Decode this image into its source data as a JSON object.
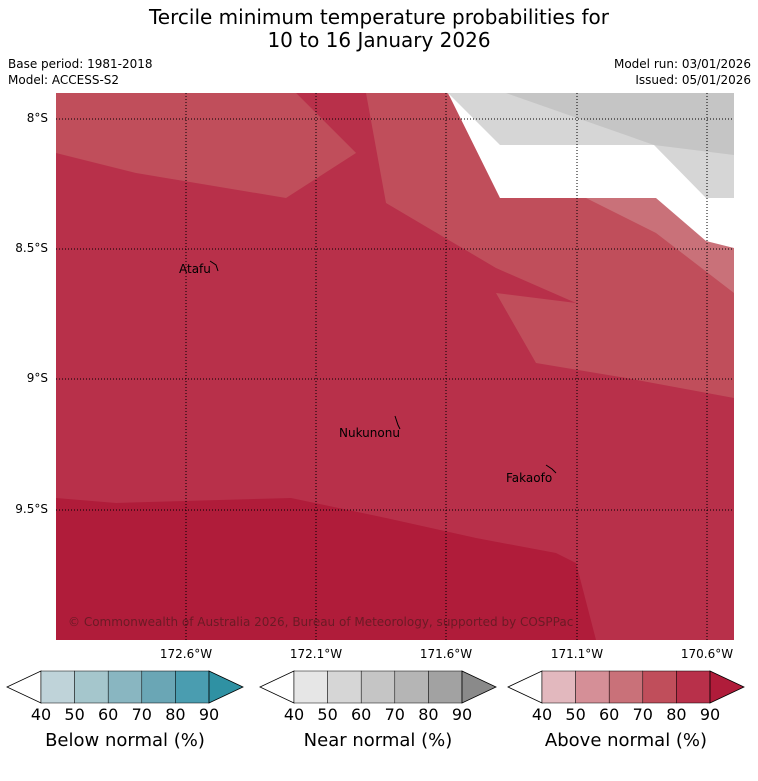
{
  "title_line1": "Tercile minimum temperature probabilities for",
  "title_line2": "10 to 16 January 2026",
  "meta": {
    "base_period": "Base period: 1981-2018",
    "model": "Model: ACCESS-S2",
    "model_run": "Model run: 03/01/2026",
    "issued": "Issued: 05/01/2026"
  },
  "latitudes": [
    "8°S",
    "8.5°S",
    "9°S",
    "9.5°S"
  ],
  "longitudes": [
    "172.6°W",
    "172.1°W",
    "171.6°W",
    "171.1°W",
    "170.6°W"
  ],
  "places": {
    "atafu": "Atafu",
    "nukunonu": "Nukunonu",
    "fakaofo": "Fakaofo"
  },
  "copyright": "© Commonwealth of Australia 2026, Bureau of Meteorology, supported by COSPPac",
  "legend": {
    "ticks": [
      "40",
      "50",
      "60",
      "70",
      "80",
      "90"
    ],
    "below": {
      "title": "Below normal (%)",
      "colors": [
        "#bfd3d9",
        "#a5c6cc",
        "#89b6c1",
        "#6aa6b5",
        "#4a9db0",
        "#2f91a3"
      ]
    },
    "near": {
      "title": "Near normal (%)",
      "colors": [
        "#e6e6e6",
        "#d6d6d6",
        "#c5c5c5",
        "#b5b5b5",
        "#a2a2a2",
        "#8a8a8a"
      ]
    },
    "above": {
      "title": "Above normal (%)",
      "colors": [
        "#e2b8be",
        "#d58f97",
        "#c97179",
        "#c04e5b",
        "#b8304a",
        "#b01c3a"
      ]
    }
  },
  "colors": {
    "above_60": "#c97179",
    "above_70": "#c04e5b",
    "above_80": "#b8304a",
    "above_90": "#b01c3a",
    "above_50": "#d58f97",
    "near_40": "#d6d6d6",
    "near_50": "#c5c5c5",
    "background": "#ffffff"
  }
}
